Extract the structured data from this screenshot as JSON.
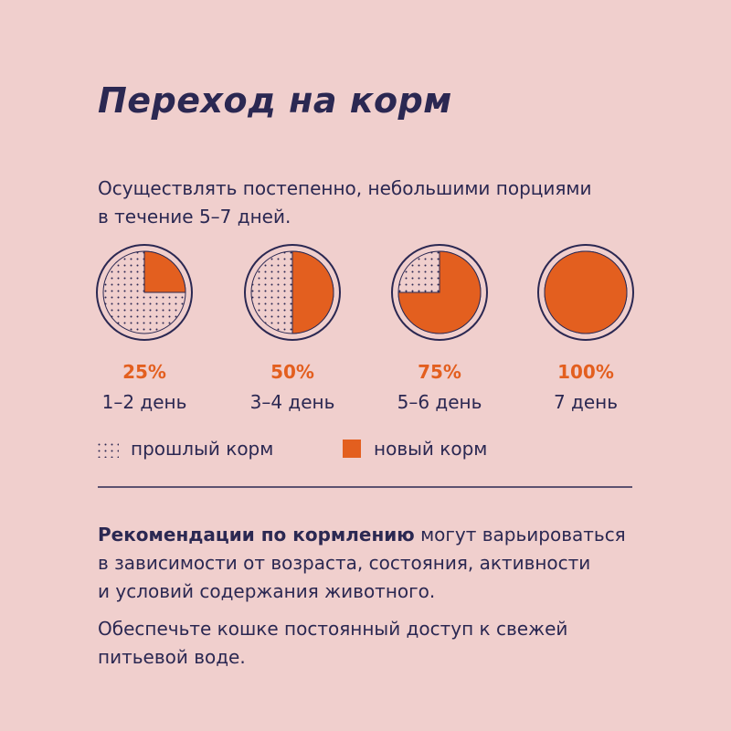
{
  "title": "Переход на корм",
  "subtitle": [
    "Осуществлять постепенно, небольшими порциями",
    "в течение 5–7 дней."
  ],
  "steps": {
    "values": [
      25,
      50,
      75,
      100
    ],
    "value_labels": [
      "25%",
      "50%",
      "75%",
      "100%"
    ],
    "labels": [
      "1–2 день",
      "3–4 день",
      "5–6 день",
      "7 день"
    ],
    "color": "#e35f1f"
  },
  "legend": {
    "old": "прошлый корм",
    "new": "новый корм"
  },
  "note": {
    "bold": "Рекомендации по кормлению",
    "lines": [
      "могут варьироваться",
      "в зависимости от возраста, состояния, активности",
      "и условий содержания животного."
    ]
  },
  "note2": [
    "Обеспечьте кошке постоянный доступ к свежей",
    "питьевой воде."
  ]
}
